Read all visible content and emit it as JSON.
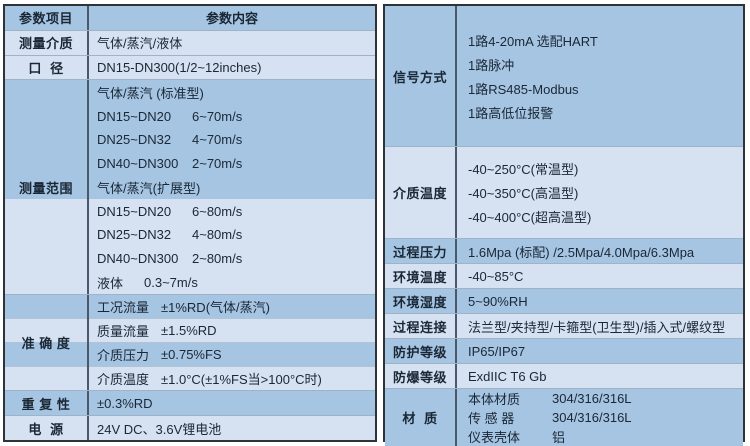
{
  "colors": {
    "band_medium": "#a6c5e3",
    "band_light": "#d6e1f1",
    "border_dark": "#2e3338",
    "grid_line": "#9fb3c8",
    "grid_line_soft": "#b3c3d6",
    "vertical_divider": "#49596b",
    "text_color": "#1a2735"
  },
  "left": {
    "header": {
      "item": "参数项目",
      "content": "参数内容"
    },
    "sections": {
      "medium": {
        "label": "测量介质",
        "value": "气体/蒸汽/液体"
      },
      "diameter": {
        "label": "口  径",
        "value": "DN15-DN300(1/2~12inches)"
      },
      "range": {
        "label": "测量范围",
        "lines": [
          {
            "text": "气体/蒸汽 (标准型)"
          },
          {
            "k": "DN15~DN20",
            "v": "6~70m/s"
          },
          {
            "k": "DN25~DN32",
            "v": "4~70m/s"
          },
          {
            "k": "DN40~DN300",
            "v": "2~70m/s"
          },
          {
            "text": "气体/蒸汽(扩展型)"
          },
          {
            "k": "DN15~DN20",
            "v": "6~80m/s"
          },
          {
            "k": "DN25~DN32",
            "v": "4~80m/s"
          },
          {
            "k": "DN40~DN300",
            "v": "2~80m/s"
          },
          {
            "k": "液体",
            "v": "0.3~7m/s"
          }
        ]
      },
      "accuracy": {
        "label": "准 确 度",
        "lines": [
          {
            "k": "工况流量",
            "v": "±1%RD(气体/蒸汽)"
          },
          {
            "k": "质量流量",
            "v": "±1.5%RD"
          },
          {
            "k": "介质压力",
            "v": "±0.75%FS"
          },
          {
            "k": "介质温度",
            "v": "±1.0°C(±1%FS当>100°C时)"
          }
        ]
      },
      "repeatability": {
        "label": "重 复 性",
        "value": "±0.3%RD"
      },
      "power": {
        "label": "电  源",
        "value": "24V DC、3.6V锂电池"
      }
    }
  },
  "right": {
    "sections": {
      "signal": {
        "label": "信号方式",
        "lines": [
          "1路4-20mA 选配HART",
          "1路脉冲",
          "1路RS485-Modbus",
          "1路高低位报警"
        ]
      },
      "medium_temp": {
        "label": "介质温度",
        "lines": [
          "-40~250°C(常温型)",
          "-40~350°C(高温型)",
          "-40~400°C(超高温型)"
        ]
      },
      "process_pressure": {
        "label": "过程压力",
        "value": "1.6Mpa (标配) /2.5Mpa/4.0Mpa/6.3Mpa"
      },
      "ambient_temp": {
        "label": "环境温度",
        "value": "-40~85°C"
      },
      "ambient_humidity": {
        "label": "环境湿度",
        "value": "5~90%RH"
      },
      "process_connection": {
        "label": "过程连接",
        "value": "法兰型/夹持型/卡箍型(卫生型)/插入式/螺纹型"
      },
      "protection": {
        "label": "防护等级",
        "value": "IP65/IP67"
      },
      "explosion_proof": {
        "label": "防爆等级",
        "value": "ExdIIC T6 Gb"
      },
      "material": {
        "label": "材  质",
        "lines": [
          {
            "k": "本体材质",
            "v": "304/316/316L"
          },
          {
            "k": "传 感 器",
            "v": "304/316/316L"
          },
          {
            "k": "仪表壳体",
            "v": "铝"
          }
        ]
      }
    }
  }
}
